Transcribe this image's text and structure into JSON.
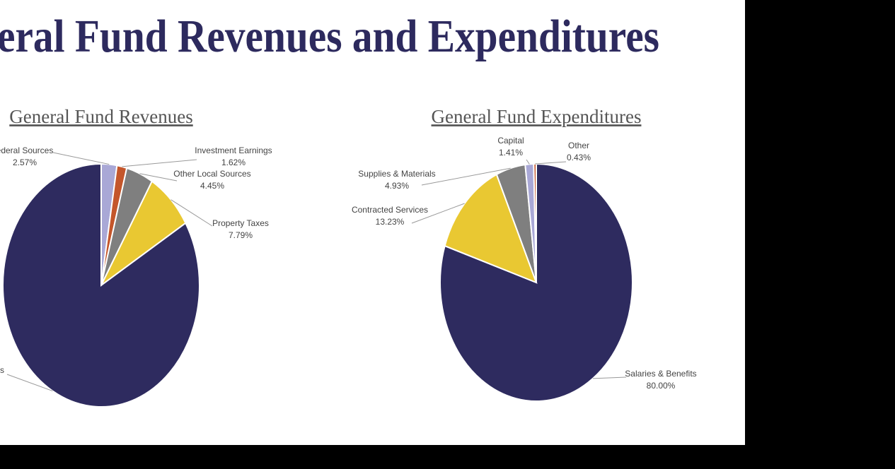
{
  "title": "eral Fund Revenues and Expenditures",
  "chart_data": [
    {
      "type": "pie",
      "title": "General Fund Revenues",
      "categories": [
        "ederal Sources",
        "Investment Earnings",
        "Other Local Sources",
        "Property Taxes",
        "s"
      ],
      "values": [
        2.57,
        1.62,
        4.45,
        7.79,
        83.57
      ],
      "value_labels": [
        "2.57%",
        "1.62%",
        "4.45%",
        "7.79%",
        null
      ],
      "colors": [
        "#a9a8d6",
        "#c4562b",
        "#7f7f7f",
        "#e9c832",
        "#2e2b5f"
      ]
    },
    {
      "type": "pie",
      "title": "General Fund Expenditures",
      "categories": [
        "Salaries & Benefits",
        "Contracted Services",
        "Supplies & Materials",
        "Capital",
        "Other"
      ],
      "values": [
        80.0,
        13.23,
        4.93,
        1.41,
        0.43
      ],
      "value_labels": [
        "80.00%",
        "13.23%",
        "4.93%",
        "1.41%",
        "0.43%"
      ],
      "colors": [
        "#2e2b5f",
        "#e9c832",
        "#7f7f7f",
        "#a9a8d6",
        "#c4562b"
      ]
    }
  ]
}
